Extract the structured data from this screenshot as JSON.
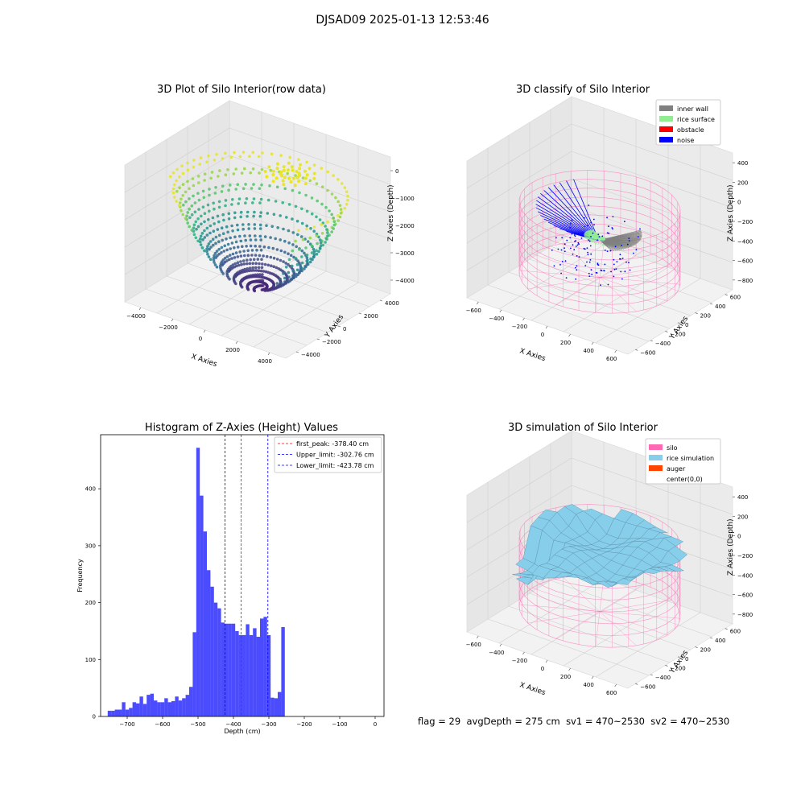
{
  "figure": {
    "suptitle": "DJSAD09 2025-01-13 12:53:46",
    "status": {
      "flag": "flag = 29",
      "avg_depth": "avgDepth = 275 cm",
      "sv1": "sv1 = 470~2530",
      "sv2": "sv2 = 470~2530"
    }
  },
  "panels": {
    "raw": {
      "title": "3D Plot of Silo Interior(row data)",
      "xlabel": "X Axies",
      "ylabel": "Y Axies",
      "zlabel": "Z Axies (Depth)",
      "xticks": [
        "−4000",
        "−2000",
        "0",
        "2000",
        "4000"
      ],
      "yticks": [
        "−4000",
        "−2000",
        "0",
        "2000",
        "4000"
      ],
      "zticks": [
        "0",
        "−1000",
        "−2000",
        "−3000",
        "−4000"
      ]
    },
    "classify": {
      "title": "3D classify of Silo Interior",
      "xlabel": "X Axies",
      "ylabel": "Y Axies",
      "zlabel": "Z Axies (Depth)",
      "xticks": [
        "−600",
        "−400",
        "−200",
        "0",
        "200",
        "400",
        "600"
      ],
      "yticks": [
        "−600",
        "−400",
        "−200",
        "0",
        "200",
        "400",
        "600"
      ],
      "zticks": [
        "400",
        "200",
        "0",
        "−200",
        "−400",
        "−600",
        "−800"
      ],
      "legend": [
        {
          "label": "inner wall",
          "color": "#808080"
        },
        {
          "label": "rice surface",
          "color": "#90ee90"
        },
        {
          "label": "obstacle",
          "color": "#ff0000"
        },
        {
          "label": "noise",
          "color": "#0000ff"
        }
      ]
    },
    "simulation": {
      "title": "3D simulation of Silo Interior",
      "xlabel": "X Axies",
      "ylabel": "Y Axies",
      "zlabel": "Z Axies (Depth)",
      "xticks": [
        "−600",
        "−400",
        "−200",
        "0",
        "200",
        "400",
        "600"
      ],
      "yticks": [
        "−600",
        "−400",
        "−200",
        "0",
        "200",
        "400",
        "600"
      ],
      "zticks": [
        "400",
        "200",
        "0",
        "−200",
        "−400",
        "−600",
        "−800"
      ],
      "legend": [
        {
          "label": "silo",
          "color": "#ff69b4"
        },
        {
          "label": "rice simulation",
          "color": "#87ceeb"
        },
        {
          "label": "auger",
          "color": "#ff4500"
        },
        {
          "label": "center(0,0)",
          "color": "#ffffff"
        }
      ]
    }
  },
  "chart_data": [
    {
      "type": "scatter",
      "title": "3D Plot of Silo Interior(row data)",
      "xlabel": "X Axies",
      "ylabel": "Y Axies",
      "zlabel": "Z Axies (Depth)",
      "xlim": [
        -4500,
        4500
      ],
      "ylim": [
        -4500,
        4500
      ],
      "zlim": [
        -4500,
        200
      ],
      "colormap": "viridis"
    },
    {
      "type": "scatter",
      "title": "3D classify of Silo Interior",
      "xlabel": "X Axies",
      "ylabel": "Y Axies",
      "zlabel": "Z Axies (Depth)",
      "xlim": [
        -700,
        700
      ],
      "ylim": [
        -700,
        700
      ],
      "zlim": [
        -950,
        450
      ],
      "series": [
        {
          "name": "inner wall",
          "color": "#808080"
        },
        {
          "name": "rice surface",
          "color": "#90ee90"
        },
        {
          "name": "obstacle",
          "color": "#ff0000"
        },
        {
          "name": "noise",
          "color": "#0000ff"
        }
      ],
      "legend_position": "top-right"
    },
    {
      "type": "bar",
      "title": "Histogram of Z-Axies (Height) Values",
      "xlabel": "Depth (cm)",
      "ylabel": "Frequency",
      "xlim": [
        -775,
        25
      ],
      "ylim": [
        0,
        495
      ],
      "xticks": [
        -700,
        -600,
        -500,
        -400,
        -300,
        -200,
        -100,
        0
      ],
      "yticks": [
        0,
        100,
        200,
        300,
        400
      ],
      "bin_start": -755,
      "bin_width": 10,
      "values": [
        10,
        10,
        12,
        12,
        25,
        12,
        15,
        25,
        23,
        35,
        22,
        38,
        40,
        28,
        25,
        25,
        32,
        25,
        27,
        35,
        28,
        32,
        38,
        52,
        148,
        472,
        388,
        325,
        257,
        228,
        200,
        190,
        165,
        163,
        163,
        163,
        150,
        143,
        143,
        162,
        143,
        155,
        140,
        172,
        175,
        143,
        33,
        32,
        43,
        157
      ],
      "bar_color": "#0000ff",
      "vlines": [
        {
          "name": "first_peak",
          "x": -378.4,
          "color": "#ff0000",
          "label": "first_peak: -378.40 cm"
        },
        {
          "name": "Upper_limit",
          "x": -302.76,
          "color": "#0000ff",
          "label": "Upper_limit: -302.76 cm"
        },
        {
          "name": "Lower_limit",
          "x": -423.78,
          "color": "#0000ff",
          "label": "Lower_limit: -423.78 cm"
        }
      ],
      "legend_position": "top-right",
      "grid": false
    },
    {
      "type": "area",
      "title": "3D simulation of Silo Interior",
      "xlabel": "X Axies",
      "ylabel": "Y Axies",
      "zlabel": "Z Axies (Depth)",
      "xlim": [
        -700,
        700
      ],
      "ylim": [
        -700,
        700
      ],
      "zlim": [
        -950,
        450
      ],
      "series": [
        {
          "name": "silo",
          "color": "#ff69b4"
        },
        {
          "name": "rice simulation",
          "color": "#87ceeb"
        },
        {
          "name": "auger",
          "color": "#ff4500"
        },
        {
          "name": "center(0,0)",
          "color": "#ffffff"
        }
      ],
      "legend_position": "top-right"
    }
  ]
}
